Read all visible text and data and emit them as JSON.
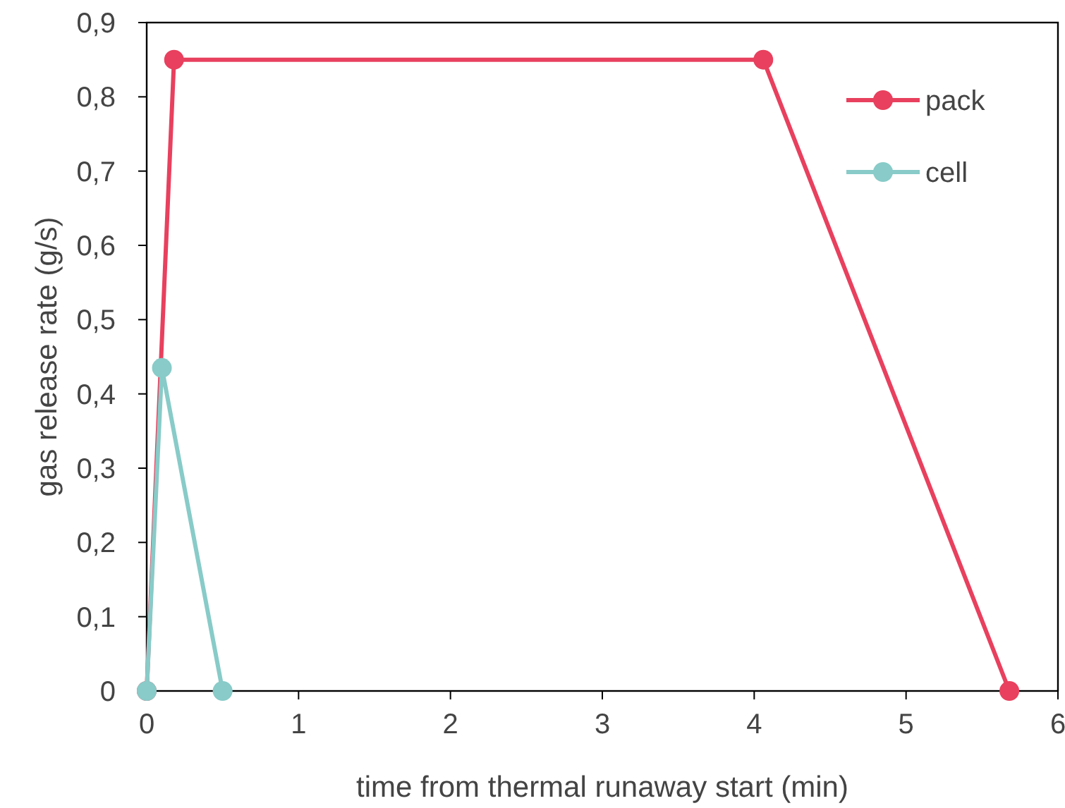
{
  "chart_data": {
    "type": "line",
    "xlabel": "time from thermal runaway start (min)",
    "ylabel": "gas release rate (g/s)",
    "xlim": [
      0,
      6
    ],
    "xticks": [
      0,
      1,
      2,
      3,
      4,
      5,
      6
    ],
    "ylim": [
      0,
      0.9
    ],
    "yticks": [
      0,
      {
        "value": 0.1,
        "label": "0,1"
      },
      {
        "value": 0.2,
        "label": "0,2"
      },
      {
        "value": 0.3,
        "label": "0,3"
      },
      {
        "value": 0.4,
        "label": "0,4"
      },
      {
        "value": 0.5,
        "label": "0,5"
      },
      {
        "value": 0.6,
        "label": "0,6"
      },
      {
        "value": 0.7,
        "label": "0,7"
      },
      {
        "value": 0.8,
        "label": "0,8"
      },
      {
        "value": 0.9,
        "label": "0,9"
      }
    ],
    "grid": false,
    "legend": "top right",
    "marker": "circle",
    "line_style": "solid",
    "series": [
      {
        "name": "pack",
        "color": "#e8405e",
        "x": [
          0,
          0.18,
          4.06,
          5.68
        ],
        "values": [
          0,
          0.85,
          0.85,
          0
        ]
      },
      {
        "name": "cell",
        "color": "#88cbc8",
        "x": [
          0,
          0.1,
          0.5
        ],
        "values": [
          0,
          0.435,
          0
        ]
      }
    ]
  }
}
